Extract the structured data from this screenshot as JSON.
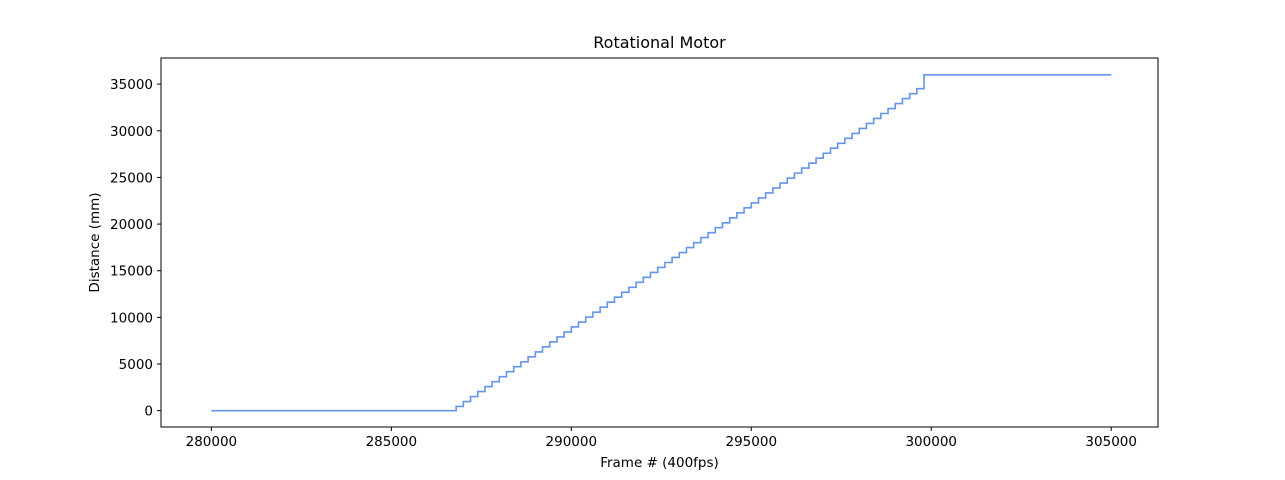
{
  "chart_data": {
    "type": "line",
    "title": "Rotational Motor",
    "xlabel": "Frame # (400fps)",
    "ylabel": "Distance (mm)",
    "xlim": [
      278600,
      306300
    ],
    "ylim": [
      -1750,
      37800
    ],
    "xticks": [
      280000,
      285000,
      290000,
      295000,
      300000,
      305000
    ],
    "yticks": [
      0,
      5000,
      10000,
      15000,
      20000,
      25000,
      30000,
      35000
    ],
    "grid": false,
    "line_color": "#6495ED",
    "series": [
      {
        "x": [
          280000,
          286600,
          286800,
          287000,
          287200,
          287400,
          287600,
          287800,
          288000,
          288200,
          288400,
          288600,
          288800,
          289000,
          289200,
          289400,
          289600,
          289800,
          290000,
          290200,
          290400,
          290600,
          290800,
          291000,
          291200,
          291400,
          291600,
          291800,
          292000,
          292200,
          292400,
          292600,
          292800,
          293000,
          293200,
          293400,
          293600,
          293800,
          294000,
          294200,
          294400,
          294600,
          294800,
          295000,
          295200,
          295400,
          295600,
          295800,
          296000,
          296200,
          296400,
          296600,
          296800,
          297000,
          297200,
          297400,
          297600,
          297800,
          298000,
          298200,
          298400,
          298600,
          298800,
          299000,
          299200,
          299400,
          299600,
          299800,
          305000
        ],
        "y": [
          0,
          0,
          450,
          980,
          1510,
          2050,
          2580,
          3110,
          3640,
          4180,
          4710,
          5240,
          5770,
          6300,
          6840,
          7370,
          7900,
          8430,
          8970,
          9500,
          10030,
          10560,
          11090,
          11630,
          12160,
          12690,
          13220,
          13760,
          14290,
          14820,
          15350,
          15880,
          16420,
          16950,
          17480,
          18010,
          18550,
          19080,
          19610,
          20140,
          20670,
          21210,
          21740,
          22270,
          22800,
          23340,
          23870,
          24400,
          24930,
          25460,
          26000,
          26530,
          27060,
          27590,
          28130,
          28660,
          29190,
          29720,
          30250,
          30790,
          31320,
          31850,
          32380,
          32920,
          33450,
          33980,
          34510,
          36000,
          36000
        ]
      }
    ]
  }
}
